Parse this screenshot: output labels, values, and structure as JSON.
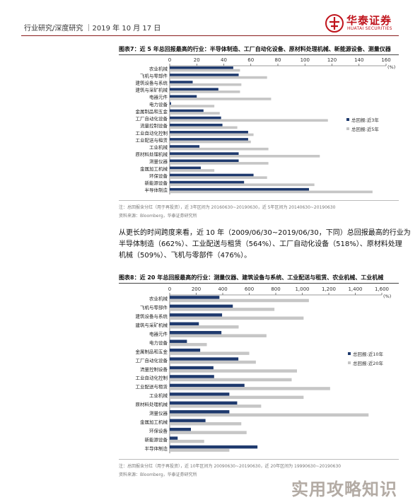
{
  "header": {
    "text": "行业研究/深度研究 ｜2019 年 10 月 17 日",
    "logo_cn": "华泰证券",
    "logo_en": "HUATAI SECURITIES",
    "brand_color": "#c0141c"
  },
  "figure7": {
    "title": "图表7：近 5 年总回报最高的行业：半导体制造、工厂自动化设备、原材料处理机械、新能源设备、测量仪器",
    "note": "注：总回报含分红（用于再投资），近 3年区间为 20160630~20190630，近 5年区间为 20140630~20190630",
    "source": "资料来源：Bloomberg，华泰证券研究所"
  },
  "paragraph": {
    "lines": [
      "从更长的时间跨度来看，近 10 年（2009/06/30~2019/06/30，下同）总回报最高的行业为",
      "半导体制造（662%）、工业配送与租赁（564%）、工厂自动化设备（518%）、原材料处理",
      "机械（509%）、飞机与零部件（476%）。"
    ]
  },
  "figure8": {
    "title": "图表8：近 20 年总回报最高的行业：测量仪器、建筑设备与系统、工业配送与租赁、农业机械、工业机械",
    "note": "注：总回报含分红（用于再投资），近 10年区间为 20090630~20190630，近 20年区间为 19990630~20190630",
    "source": "资料来源：Bloomberg，华泰证券研究所"
  },
  "watermark": "实用攻略知识",
  "chart_data": [
    {
      "type": "bar",
      "orientation": "horizontal",
      "unit": "(%)",
      "xlim": [
        0,
        160
      ],
      "ticks": [
        0,
        20,
        40,
        60,
        80,
        100,
        120,
        140,
        160
      ],
      "categories": [
        "农业机械",
        "飞机与零部件",
        "建筑设备与系统",
        "建筑与采矿机械",
        "电器元件",
        "电力设备",
        "金属制品和五金",
        "工厂自动化设备",
        "流量控制设备",
        "工业自动化控制",
        "工业配送与租赁",
        "工业机械",
        "原材料处理机械",
        "测量仪器",
        "金属加工机械",
        "环保设备",
        "新能源设备",
        "半导体制造"
      ],
      "series": [
        {
          "name": "总回报:近3年",
          "color": "#1f3a6e",
          "values": [
            47,
            51,
            17,
            36,
            20,
            1,
            25,
            38,
            39,
            58,
            58,
            22,
            51,
            51,
            23,
            62,
            55,
            103
          ]
        },
        {
          "name": "总回报:近5年",
          "color": "#c6c6c6",
          "values": [
            52,
            72,
            53,
            52,
            75,
            33,
            37,
            117,
            50,
            62,
            60,
            73,
            111,
            73,
            33,
            72,
            107,
            150
          ]
        }
      ],
      "legend": "right"
    },
    {
      "type": "bar",
      "orientation": "horizontal",
      "unit": "(%)",
      "xlim": [
        0,
        1600
      ],
      "ticks": [
        0,
        200,
        400,
        600,
        800,
        1000,
        1200,
        1400,
        1600
      ],
      "tick_labels": [
        "0",
        "200",
        "400",
        "600",
        "800",
        "1,000",
        "1,200",
        "1,400",
        "1,600"
      ],
      "categories": [
        "农业机械",
        "飞机与零部件",
        "建筑设备与系统",
        "建筑与采矿机械",
        "电器元件",
        "电力设备",
        "金属制品和五金",
        "工厂自动化设备",
        "流量控制设备",
        "工业自动化控制",
        "工业配送与租赁",
        "工业机械",
        "原材料处理机械",
        "测量仪器",
        "金属加工机械",
        "环保设备",
        "新能源设备",
        "半导体制造"
      ],
      "series": [
        {
          "name": "总回报:近10年",
          "color": "#1f3a6e",
          "values": [
            375,
            476,
            395,
            220,
            390,
            130,
            230,
            518,
            330,
            335,
            564,
            450,
            509,
            450,
            270,
            160,
            60,
            662
          ]
        },
        {
          "name": "总回报:近20年",
          "color": "#c6c6c6",
          "values": [
            1050,
            790,
            1010,
            520,
            730,
            280,
            600,
            650,
            960,
            920,
            1210,
            1010,
            690,
            1500,
            540,
            580,
            260,
            450
          ]
        }
      ],
      "legend": "right"
    }
  ]
}
